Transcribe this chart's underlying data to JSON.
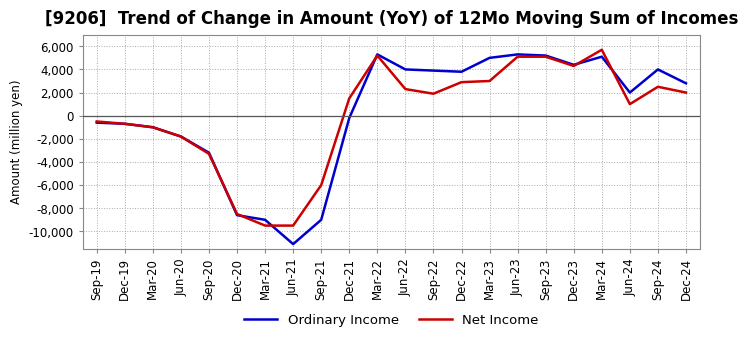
{
  "title": "[9206]  Trend of Change in Amount (YoY) of 12Mo Moving Sum of Incomes",
  "ylabel": "Amount (million yen)",
  "ylim": [
    -11500,
    7000
  ],
  "yticks": [
    -10000,
    -8000,
    -6000,
    -4000,
    -2000,
    0,
    2000,
    4000,
    6000
  ],
  "x_labels": [
    "Sep-19",
    "Dec-19",
    "Mar-20",
    "Jun-20",
    "Sep-20",
    "Dec-20",
    "Mar-21",
    "Jun-21",
    "Sep-21",
    "Dec-21",
    "Mar-22",
    "Jun-22",
    "Sep-22",
    "Dec-22",
    "Mar-23",
    "Jun-23",
    "Sep-23",
    "Dec-23",
    "Mar-24",
    "Jun-24",
    "Sep-24",
    "Dec-24"
  ],
  "ordinary_income": [
    -600,
    -700,
    -1000,
    -1800,
    -3200,
    -8600,
    -9000,
    -11100,
    -9000,
    -200,
    5300,
    4000,
    3900,
    3800,
    5000,
    5300,
    5200,
    4400,
    5100,
    2000,
    4000,
    2800
  ],
  "net_income": [
    -500,
    -700,
    -1000,
    -1800,
    -3300,
    -8500,
    -9500,
    -9500,
    -6000,
    1500,
    5200,
    2300,
    1900,
    2900,
    3000,
    5100,
    5100,
    4300,
    5700,
    1000,
    2500,
    2000
  ],
  "line_color_ordinary": "#0000cc",
  "line_color_net": "#cc0000",
  "line_width": 1.8,
  "background_color": "#ffffff",
  "plot_bg_color": "#ffffff",
  "grid_color": "#aaaaaa",
  "title_fontsize": 12,
  "axis_fontsize": 8.5,
  "legend_labels": [
    "Ordinary Income",
    "Net Income"
  ]
}
